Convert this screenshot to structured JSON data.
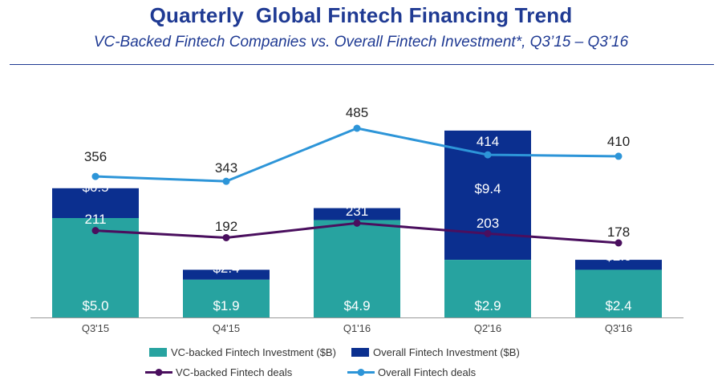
{
  "title": "Quarterly  Global Fintech Financing Trend",
  "subtitle": "VC-Backed Fintech Companies vs. Overall Fintech Investment*, Q3’15 – Q3’16",
  "colors": {
    "title": "#1f3a93",
    "vc_investment": "#27a3a0",
    "overall_investment": "#0b2f8f",
    "vc_deals": "#4a0f5e",
    "overall_deals": "#2d95d8",
    "axis": "#9a9a9a"
  },
  "chart_data": {
    "type": "bar",
    "stacked": true,
    "categories": [
      "Q3'15",
      "Q4'15",
      "Q1'16",
      "Q2'16",
      "Q3'16"
    ],
    "series": [
      {
        "name": "VC-backed Fintech Investment ($B)",
        "type": "bar",
        "values": [
          5.0,
          1.9,
          4.9,
          2.9,
          2.4
        ],
        "labels": [
          "$5.0",
          "$1.9",
          "$4.9",
          "$2.9",
          "$2.4"
        ]
      },
      {
        "name": "Overall Fintech Investment ($B)",
        "type": "bar",
        "values": [
          6.5,
          2.4,
          5.5,
          9.4,
          2.9
        ],
        "labels": [
          "$6.5",
          "$2.4",
          "$5.5",
          "$9.4",
          "$2.9"
        ]
      },
      {
        "name": "VC-backed Fintech deals",
        "type": "line",
        "values": [
          211,
          192,
          231,
          203,
          178
        ],
        "labels": [
          "211",
          "192",
          "231",
          "203",
          "178"
        ]
      },
      {
        "name": "Overall Fintech deals",
        "type": "line",
        "values": [
          356,
          343,
          485,
          414,
          410
        ],
        "labels": [
          "356",
          "343",
          "485",
          "414",
          "410"
        ]
      }
    ],
    "legend_position": "bottom",
    "grid": false
  }
}
